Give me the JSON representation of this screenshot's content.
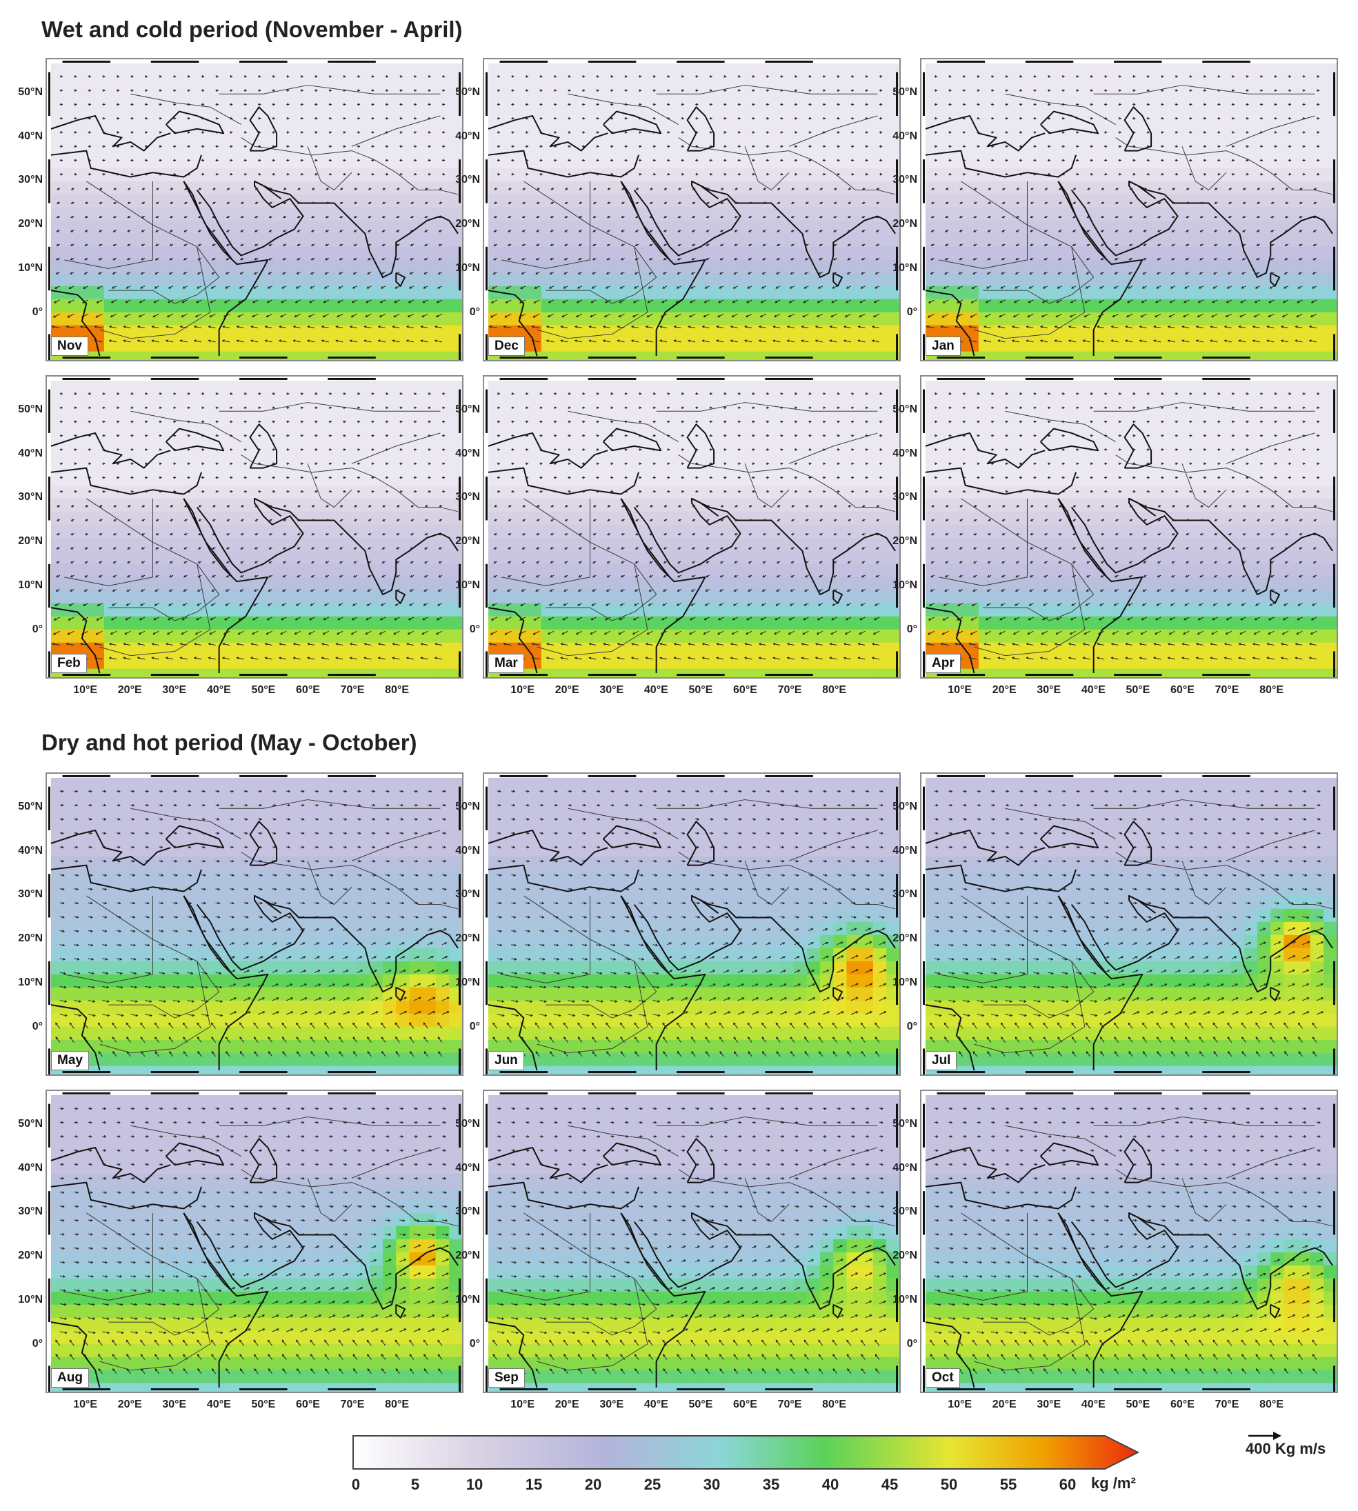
{
  "sections": [
    {
      "title": "Wet and cold period (November - April)"
    },
    {
      "title": "Dry and hot period (May - October)"
    }
  ],
  "panels": [
    {
      "month": "Nov"
    },
    {
      "month": "Dec"
    },
    {
      "month": "Jan"
    },
    {
      "month": "Feb"
    },
    {
      "month": "Mar"
    },
    {
      "month": "Apr"
    },
    {
      "month": "May"
    },
    {
      "month": "Jun"
    },
    {
      "month": "Jul"
    },
    {
      "month": "Aug"
    },
    {
      "month": "Sep"
    },
    {
      "month": "Oct"
    }
  ],
  "lat_ticks": [
    "50°N",
    "40°N",
    "30°N",
    "20°N",
    "10°N",
    "0°"
  ],
  "lon_ticks": [
    "10°E",
    "20°E",
    "30°E",
    "40°E",
    "50°E",
    "60°E",
    "70°E",
    "80°E"
  ],
  "colorbar": {
    "ticks": [
      "0",
      "5",
      "10",
      "15",
      "20",
      "25",
      "30",
      "35",
      "40",
      "45",
      "50",
      "55",
      "60"
    ],
    "unit": "kg /m²",
    "colors": [
      "#ffffff",
      "#ddd6e6",
      "#b4b4dc",
      "#8cd2d8",
      "#5ad25a",
      "#e6e632",
      "#f0a000",
      "#ee2a10"
    ]
  },
  "reference_vector": {
    "value": "400",
    "unit": "Kg m/s"
  }
}
